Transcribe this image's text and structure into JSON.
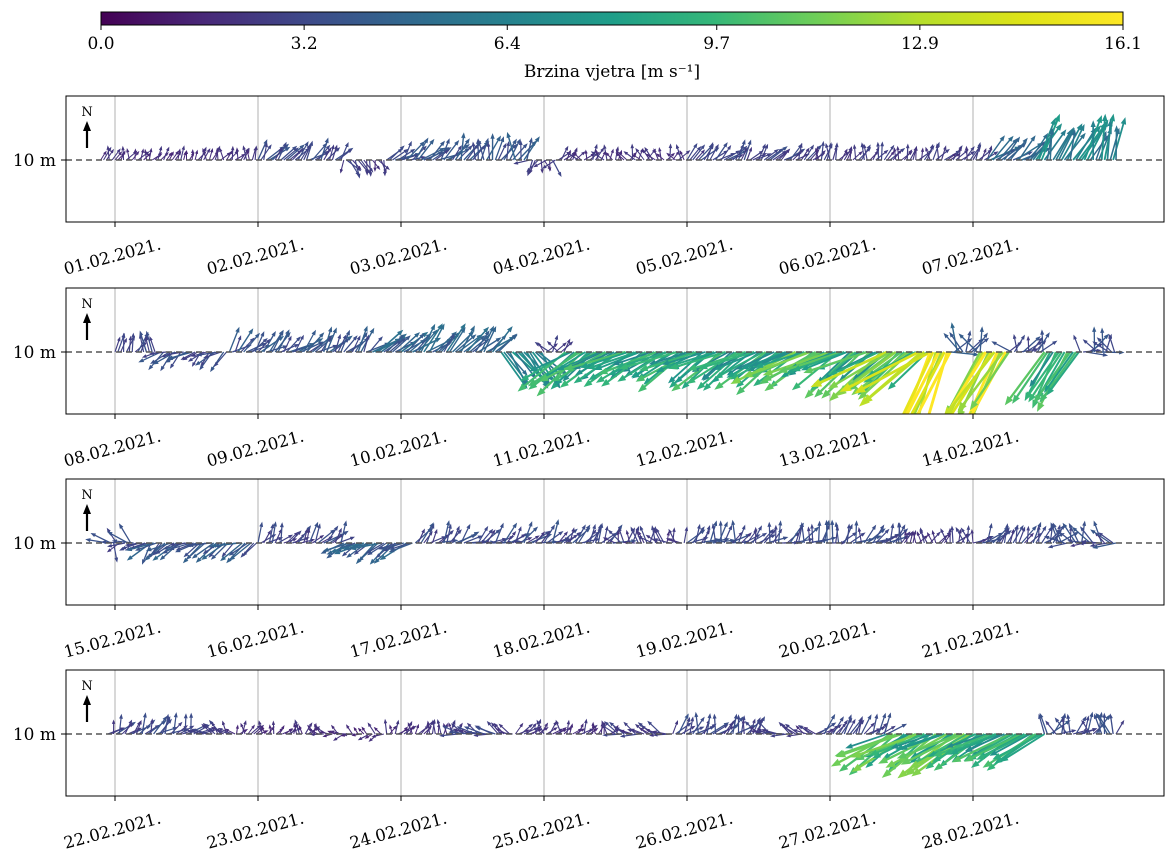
{
  "chart_data": {
    "type": "quiver",
    "colorbar": {
      "label": "Brzina vjetra [m s⁻¹]",
      "min": 0.0,
      "max": 16.1,
      "ticks": [
        "0.0",
        "3.2",
        "6.4",
        "9.7",
        "12.9",
        "16.1"
      ],
      "colormap": "viridis"
    },
    "height_label": "10 m",
    "north_label": "N",
    "panels": [
      {
        "dates": [
          "01.02.2021.",
          "02.02.2021.",
          "03.02.2021.",
          "04.02.2021.",
          "05.02.2021.",
          "06.02.2021.",
          "07.02.2021."
        ],
        "episodes": [
          {
            "start": -0.1,
            "end": 1.0,
            "speed": 2.0,
            "dir": 200,
            "var": 40
          },
          {
            "start": 1.0,
            "end": 1.6,
            "speed": 3.2,
            "dir": 220,
            "var": 30
          },
          {
            "start": 1.6,
            "end": 1.9,
            "speed": 2.5,
            "dir": 340,
            "var": 40
          },
          {
            "start": 1.9,
            "end": 2.4,
            "speed": 3.5,
            "dir": 230,
            "var": 30
          },
          {
            "start": 2.4,
            "end": 2.9,
            "speed": 3.8,
            "dir": 200,
            "var": 40
          },
          {
            "start": 2.9,
            "end": 3.1,
            "speed": 2.5,
            "dir": 20,
            "var": 60
          },
          {
            "start": 3.1,
            "end": 4.0,
            "speed": 2.2,
            "dir": 180,
            "var": 60
          },
          {
            "start": 4.0,
            "end": 4.9,
            "speed": 3.0,
            "dir": 220,
            "var": 30
          },
          {
            "start": 4.9,
            "end": 6.1,
            "speed": 2.5,
            "dir": 200,
            "var": 40
          },
          {
            "start": 6.1,
            "end": 6.4,
            "speed": 4.5,
            "dir": 230,
            "var": 20
          },
          {
            "start": 6.4,
            "end": 7.0,
            "speed": 6.5,
            "dir": 200,
            "var": 20
          }
        ]
      },
      {
        "dates": [
          "08.02.2021.",
          "09.02.2021.",
          "10.02.2021.",
          "11.02.2021.",
          "12.02.2021.",
          "13.02.2021.",
          "14.02.2021."
        ],
        "episodes": [
          {
            "start": 0.0,
            "end": 0.3,
            "speed": 3.0,
            "dir": 200,
            "var": 40
          },
          {
            "start": 0.3,
            "end": 0.8,
            "speed": 3.5,
            "dir": 60,
            "var": 30
          },
          {
            "start": 0.8,
            "end": 1.8,
            "speed": 3.8,
            "dir": 225,
            "var": 30
          },
          {
            "start": 1.8,
            "end": 2.7,
            "speed": 4.5,
            "dir": 225,
            "var": 20
          },
          {
            "start": 2.7,
            "end": 3.0,
            "speed": 6.5,
            "dir": 320,
            "var": 15
          },
          {
            "start": 3.0,
            "end": 3.15,
            "speed": 2.5,
            "dir": 180,
            "var": 60
          },
          {
            "start": 3.15,
            "end": 4.7,
            "speed": 8.5,
            "dir": 60,
            "var": 15
          },
          {
            "start": 4.7,
            "end": 5.4,
            "speed": 9.5,
            "dir": 60,
            "var": 15
          },
          {
            "start": 5.4,
            "end": 5.7,
            "speed": 11.5,
            "dir": 55,
            "var": 12
          },
          {
            "start": 5.7,
            "end": 5.85,
            "speed": 15.5,
            "dir": 20,
            "var": 8
          },
          {
            "start": 5.85,
            "end": 6.05,
            "speed": 4.0,
            "dir": 200,
            "var": 80
          },
          {
            "start": 6.05,
            "end": 6.25,
            "speed": 14.5,
            "dir": 30,
            "var": 8
          },
          {
            "start": 6.25,
            "end": 6.5,
            "speed": 3.5,
            "dir": 180,
            "var": 80
          },
          {
            "start": 6.5,
            "end": 6.75,
            "speed": 9.0,
            "dir": 30,
            "var": 10
          },
          {
            "start": 6.75,
            "end": 7.0,
            "speed": 3.5,
            "dir": 200,
            "var": 80
          }
        ]
      },
      {
        "dates": [
          "15.02.2021.",
          "16.02.2021.",
          "17.02.2021.",
          "18.02.2021.",
          "19.02.2021.",
          "20.02.2021.",
          "21.02.2021."
        ],
        "episodes": [
          {
            "start": -0.05,
            "end": 0.25,
            "speed": 3.2,
            "dir": 60,
            "var": 90
          },
          {
            "start": 0.25,
            "end": 1.0,
            "speed": 4.0,
            "dir": 60,
            "var": 25
          },
          {
            "start": 1.0,
            "end": 1.6,
            "speed": 3.0,
            "dir": 220,
            "var": 40
          },
          {
            "start": 1.6,
            "end": 2.1,
            "speed": 4.2,
            "dir": 60,
            "var": 20
          },
          {
            "start": 2.1,
            "end": 3.5,
            "speed": 3.2,
            "dir": 230,
            "var": 40
          },
          {
            "start": 3.5,
            "end": 4.0,
            "speed": 2.5,
            "dir": 150,
            "var": 60
          },
          {
            "start": 4.0,
            "end": 5.5,
            "speed": 3.2,
            "dir": 220,
            "var": 50
          },
          {
            "start": 5.5,
            "end": 6.0,
            "speed": 2.5,
            "dir": 190,
            "var": 50
          },
          {
            "start": 6.0,
            "end": 6.6,
            "speed": 3.0,
            "dir": 220,
            "var": 40
          },
          {
            "start": 6.6,
            "end": 7.0,
            "speed": 3.2,
            "dir": 130,
            "var": 60
          }
        ]
      },
      {
        "dates": [
          "22.02.2021.",
          "23.02.2021.",
          "24.02.2021.",
          "25.02.2021.",
          "26.02.2021.",
          "27.02.2021.",
          "28.02.2021."
        ],
        "episodes": [
          {
            "start": -0.05,
            "end": 0.6,
            "speed": 3.0,
            "dir": 220,
            "var": 40
          },
          {
            "start": 0.6,
            "end": 0.85,
            "speed": 2.5,
            "dir": 130,
            "var": 40
          },
          {
            "start": 0.85,
            "end": 1.4,
            "speed": 2.0,
            "dir": 200,
            "var": 50
          },
          {
            "start": 1.4,
            "end": 1.9,
            "speed": 1.8,
            "dir": 100,
            "var": 50
          },
          {
            "start": 1.9,
            "end": 2.4,
            "speed": 2.0,
            "dir": 200,
            "var": 50
          },
          {
            "start": 2.4,
            "end": 2.8,
            "speed": 2.8,
            "dir": 110,
            "var": 30
          },
          {
            "start": 2.8,
            "end": 3.5,
            "speed": 2.2,
            "dir": 200,
            "var": 50
          },
          {
            "start": 3.5,
            "end": 3.9,
            "speed": 2.6,
            "dir": 110,
            "var": 30
          },
          {
            "start": 3.9,
            "end": 4.5,
            "speed": 3.0,
            "dir": 210,
            "var": 40
          },
          {
            "start": 4.5,
            "end": 4.9,
            "speed": 2.5,
            "dir": 110,
            "var": 30
          },
          {
            "start": 4.9,
            "end": 5.4,
            "speed": 3.0,
            "dir": 220,
            "var": 30
          },
          {
            "start": 5.4,
            "end": 6.0,
            "speed": 9.5,
            "dir": 60,
            "var": 12
          },
          {
            "start": 6.0,
            "end": 6.5,
            "speed": 8.5,
            "dir": 60,
            "var": 12
          },
          {
            "start": 6.5,
            "end": 7.0,
            "speed": 3.5,
            "dir": 200,
            "var": 60
          }
        ]
      }
    ]
  }
}
